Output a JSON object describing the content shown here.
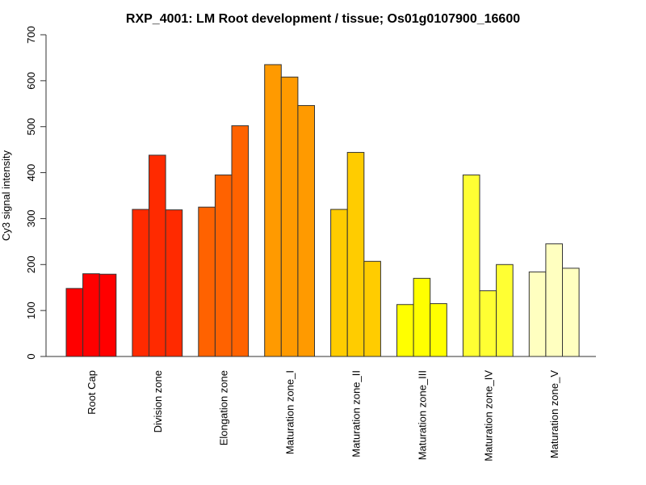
{
  "chart_data": {
    "type": "bar",
    "title": "RXP_4001: LM Root development / tissue; Os01g0107900_16600",
    "xlabel": "",
    "ylabel": "Cy3 signal intensity",
    "ylim": [
      0,
      700
    ],
    "yticks": [
      0,
      100,
      200,
      300,
      400,
      500,
      600,
      700
    ],
    "grid": false,
    "categories": [
      "Root Cap",
      "Division zone",
      "Elongation zone",
      "Maturation zone_I",
      "Maturation zone_II",
      "Maturation zone_III",
      "Maturation zone_IV",
      "Maturation zone_V"
    ],
    "replicates_per_category": 3,
    "values": [
      [
        148,
        180,
        179
      ],
      [
        320,
        438,
        319
      ],
      [
        325,
        395,
        502
      ],
      [
        635,
        608,
        546
      ],
      [
        320,
        444,
        207
      ],
      [
        113,
        170,
        115
      ],
      [
        395,
        143,
        200
      ],
      [
        184,
        245,
        192
      ]
    ],
    "colors": [
      "#FF0000",
      "#FF2A00",
      "#FF6200",
      "#FF9A00",
      "#FFCC00",
      "#FFFF00",
      "#FFFF33",
      "#FFFFC0"
    ]
  }
}
